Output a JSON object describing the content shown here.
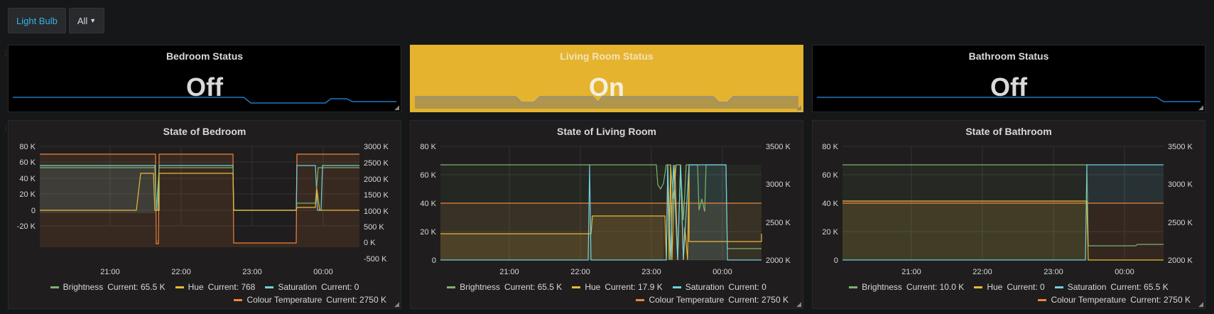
{
  "variable": {
    "name": "Light Bulb",
    "value": "All"
  },
  "stats": [
    {
      "title": "Bedroom Status",
      "value": "Off",
      "on": false
    },
    {
      "title": "Living Room Status",
      "value": "On",
      "on": true
    },
    {
      "title": "Bathroom Status",
      "value": "Off",
      "on": false
    }
  ],
  "graphs": [
    {
      "title": "State of Bedroom",
      "yLeftTicks": [
        "80 K",
        "60 K",
        "40 K",
        "20 K",
        "0",
        "-20 K"
      ],
      "yRightTicks": [
        "3000 K",
        "2500 K",
        "2000 K",
        "1500 K",
        "1000 K",
        "500 K",
        "0 K",
        "-500 K"
      ],
      "xTicks": [
        "21:00",
        "22:00",
        "23:00",
        "00:00"
      ],
      "legend": [
        {
          "label": "Brightness",
          "current": "Current: 65.5 K",
          "color": "#7eb26d"
        },
        {
          "label": "Hue",
          "current": "Current: 768",
          "color": "#eab839"
        },
        {
          "label": "Saturation",
          "current": "Current: 0",
          "color": "#6ed0e0"
        },
        {
          "label": "Colour Temperature",
          "current": "Current: 2750 K",
          "color": "#ef843c"
        }
      ]
    },
    {
      "title": "State of Living Room",
      "yLeftTicks": [
        "80 K",
        "60 K",
        "40 K",
        "20 K",
        "0"
      ],
      "yRightTicks": [
        "3500 K",
        "3000 K",
        "2500 K",
        "2000 K"
      ],
      "xTicks": [
        "21:00",
        "22:00",
        "23:00",
        "00:00"
      ],
      "legend": [
        {
          "label": "Brightness",
          "current": "Current: 65.5 K",
          "color": "#7eb26d"
        },
        {
          "label": "Hue",
          "current": "Current: 17.9 K",
          "color": "#eab839"
        },
        {
          "label": "Saturation",
          "current": "Current: 0",
          "color": "#6ed0e0"
        },
        {
          "label": "Colour Temperature",
          "current": "Current: 2750 K",
          "color": "#ef843c"
        }
      ]
    },
    {
      "title": "State of Bathroom",
      "yLeftTicks": [
        "80 K",
        "60 K",
        "40 K",
        "20 K",
        "0"
      ],
      "yRightTicks": [
        "3500 K",
        "3000 K",
        "2500 K",
        "2000 K"
      ],
      "xTicks": [
        "21:00",
        "22:00",
        "23:00",
        "00:00"
      ],
      "legend": [
        {
          "label": "Brightness",
          "current": "Current: 10.0 K",
          "color": "#7eb26d"
        },
        {
          "label": "Hue",
          "current": "Current: 0",
          "color": "#eab839"
        },
        {
          "label": "Saturation",
          "current": "Current: 65.5 K",
          "color": "#6ed0e0"
        },
        {
          "label": "Colour Temperature",
          "current": "Current: 2750 K",
          "color": "#ef843c"
        }
      ]
    }
  ]
}
